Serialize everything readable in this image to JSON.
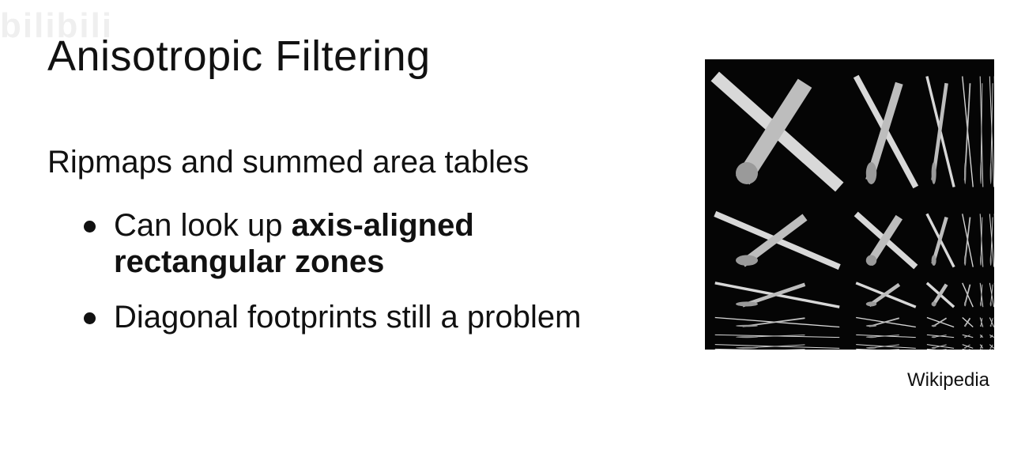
{
  "watermark": "bilibili",
  "slide": {
    "title": "Anisotropic Filtering",
    "subtitle": "Ripmaps and summed area tables",
    "bullets": [
      {
        "text": "Can look up ",
        "bold": "axis-aligned rectangular zones"
      },
      {
        "text": "Diagonal footprints still a problem"
      }
    ]
  },
  "figure": {
    "description_icon": "ripmap-satellite-image",
    "credit": "Wikipedia"
  }
}
